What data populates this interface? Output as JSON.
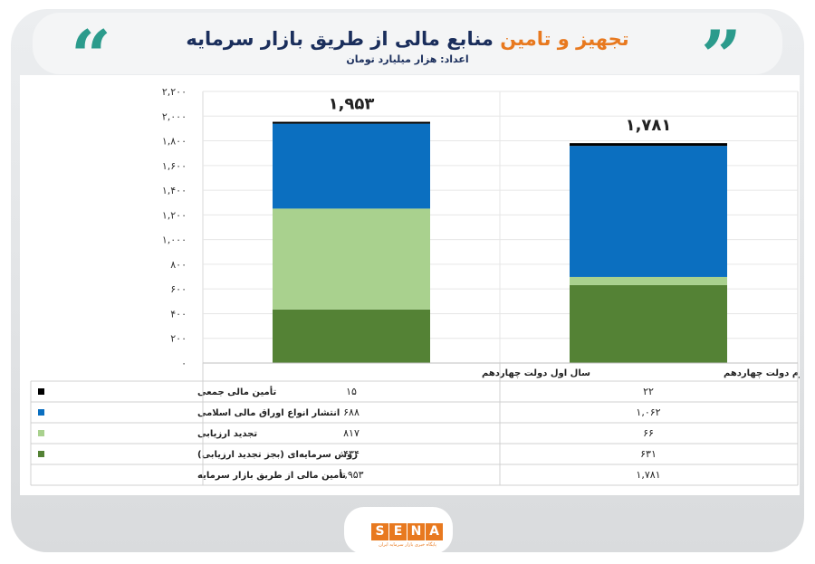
{
  "header": {
    "title_part1": "تجهیز و تامین",
    "title_part2": "منابع مالی از طریق بازار سرمایه",
    "subtitle": "اعداد: هزار میلیارد تومان"
  },
  "colors": {
    "series": [
      "#000000",
      "#0b6fc0",
      "#a9d18e",
      "#548235"
    ],
    "accent": "#e8791f",
    "navy": "#1a2e5c",
    "quote": "#2b9b8c"
  },
  "chart_data": {
    "type": "bar",
    "stacked": true,
    "categories": [
      "سال اول دولت چهاردهم",
      "سال دوم دولت چهاردهم"
    ],
    "series": [
      {
        "name": "روش سرمایه‌ای (بجز تجدید ارزیابی)",
        "values": [
          434,
          631
        ]
      },
      {
        "name": "تجدید ارزیابی",
        "values": [
          817,
          66
        ]
      },
      {
        "name": "انتشار انواع اوراق مالی اسلامی",
        "values": [
          688,
          1062
        ]
      },
      {
        "name": "تأمین مالی جمعی",
        "values": [
          15,
          22
        ]
      }
    ],
    "totals": [
      1953,
      1781
    ],
    "total_labels": [
      "۱,۹۵۳",
      "۱,۷۸۱"
    ],
    "ylim": [
      0,
      2200
    ],
    "yticks": [
      {
        "value": 0,
        "label": "۰"
      },
      {
        "value": 200,
        "label": "۲۰۰"
      },
      {
        "value": 400,
        "label": "۴۰۰"
      },
      {
        "value": 600,
        "label": "۶۰۰"
      },
      {
        "value": 800,
        "label": "۸۰۰"
      },
      {
        "value": 1000,
        "label": "۱,۰۰۰"
      },
      {
        "value": 1200,
        "label": "۱,۲۰۰"
      },
      {
        "value": 1400,
        "label": "۱,۴۰۰"
      },
      {
        "value": 1600,
        "label": "۱,۶۰۰"
      },
      {
        "value": 1800,
        "label": "۱,۸۰۰"
      },
      {
        "value": 2000,
        "label": "۲,۰۰۰"
      },
      {
        "value": 2200,
        "label": "۲,۲۰۰"
      }
    ],
    "grid": true,
    "table": {
      "rows": [
        {
          "label": "تأمین مالی جمعی",
          "swatch": "#000000",
          "cells": [
            "۱۵",
            "۲۲"
          ]
        },
        {
          "label": "انتشار انواع اوراق مالی اسلامی",
          "swatch": "#0b6fc0",
          "cells": [
            "۶۸۸",
            "۱,۰۶۲"
          ]
        },
        {
          "label": "تجدید ارزیابی",
          "swatch": "#a9d18e",
          "cells": [
            "۸۱۷",
            "۶۶"
          ]
        },
        {
          "label": "روش سرمایه‌ای (بجز تجدید ارزیابی)",
          "swatch": "#548235",
          "cells": [
            "۴۳۴",
            "۶۳۱"
          ]
        },
        {
          "label": "تأمین مالی از طریق بازار سرمایه",
          "swatch": "",
          "cells": [
            "۱,۹۵۳",
            "۱,۷۸۱"
          ]
        }
      ]
    }
  },
  "logo": {
    "letters": [
      "S",
      "E",
      "N",
      "A"
    ],
    "tagline": "پایگاه خبری بازار سرمایه ایران"
  }
}
